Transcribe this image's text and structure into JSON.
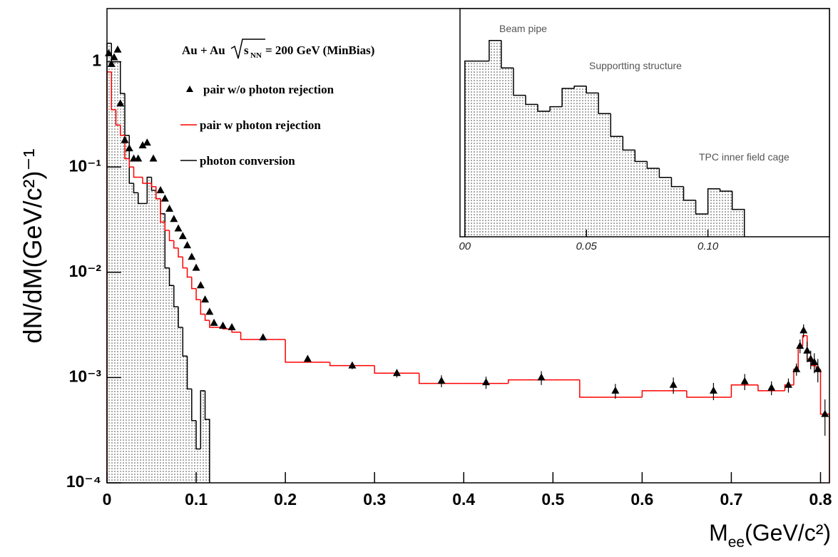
{
  "chart_data": [
    {
      "type": "step",
      "y_label": "dN/dM(GeV/c²)⁻¹",
      "x_label": [
        "M",
        "ee",
        "(GeV/c²)"
      ],
      "annotation": [
        "Au + Au ",
        "s",
        "NN",
        " = 200 GeV (MinBias)"
      ],
      "xlim": [
        0,
        0.81
      ],
      "ylim": [
        0.0001,
        3.2
      ],
      "log_y": true,
      "xticks": [
        0,
        0.1,
        0.2,
        0.3,
        0.4,
        0.5,
        0.6,
        0.7,
        0.8
      ],
      "yticks": [
        {
          "value": 0.0001,
          "label": "10⁻⁴"
        },
        {
          "value": 0.001,
          "label": "10⁻³"
        },
        {
          "value": 0.01,
          "label": "10⁻²"
        },
        {
          "value": 0.1,
          "label": "10⁻¹"
        },
        1
      ],
      "series": [
        {
          "name": "photon conversion",
          "type": "step",
          "color": "#000000",
          "fill": "dots",
          "bins": [
            0,
            0.005,
            0.01,
            0.015,
            0.02,
            0.025,
            0.03,
            0.035,
            0.04,
            0.045,
            0.05,
            0.055,
            0.06,
            0.065,
            0.07,
            0.075,
            0.08,
            0.085,
            0.09,
            0.095,
            0.1,
            0.105,
            0.11,
            0.115
          ],
          "values": [
            1.5,
            1,
            1,
            0.5,
            0.2,
            0.07,
            0.057,
            0.045,
            0.045,
            0.08,
            0.06,
            0.05,
            0.036,
            0.011,
            0.0075,
            0.0047,
            0.003,
            0.0016,
            0.00078,
            0.00039,
            0.00021,
            0.00075,
            0.0004
          ]
        },
        {
          "name": "pair w photon rejection",
          "type": "step",
          "color": "#ff0000",
          "bins": [
            0,
            0.005,
            0.01,
            0.015,
            0.02,
            0.025,
            0.03,
            0.035,
            0.04,
            0.045,
            0.05,
            0.055,
            0.06,
            0.065,
            0.07,
            0.075,
            0.08,
            0.085,
            0.09,
            0.095,
            0.1,
            0.105,
            0.11,
            0.115,
            0.12,
            0.13,
            0.14,
            0.15,
            0.2,
            0.25,
            0.3,
            0.35,
            0.4,
            0.45,
            0.5,
            0.53,
            0.6,
            0.65,
            0.7,
            0.73,
            0.76,
            0.77,
            0.775,
            0.78,
            0.785,
            0.79,
            0.795,
            0.8,
            0.81
          ],
          "values": [
            0.8,
            0.35,
            0.25,
            0.2,
            0.12,
            0.1,
            0.08,
            0.08,
            0.07,
            0.07,
            0.065,
            0.05,
            0.03,
            0.025,
            0.02,
            0.017,
            0.014,
            0.011,
            0.009,
            0.007,
            0.0055,
            0.004,
            0.0035,
            0.003,
            0.003,
            0.0029,
            0.0027,
            0.0023,
            0.0014,
            0.0013,
            0.0011,
            0.00088,
            0.00088,
            0.00095,
            0.00095,
            0.00065,
            0.00075,
            0.00065,
            0.00085,
            0.00075,
            0.00085,
            0.0012,
            0.002,
            0.0025,
            0.0015,
            0.0013,
            0.0012,
            0.00045
          ]
        },
        {
          "name": "pair w/o photon rejection",
          "type": "scatter",
          "color": "#000000",
          "marker": "triangle",
          "x": [
            0.002,
            0.005,
            0.008,
            0.012,
            0.015,
            0.02,
            0.025,
            0.03,
            0.035,
            0.04,
            0.045,
            0.052,
            0.06,
            0.065,
            0.07,
            0.075,
            0.08,
            0.085,
            0.09,
            0.095,
            0.1,
            0.105,
            0.11,
            0.115,
            0.12,
            0.13,
            0.14,
            0.175,
            0.225,
            0.275,
            0.325,
            0.375,
            0.425,
            0.487,
            0.57,
            0.635,
            0.68,
            0.715,
            0.745,
            0.764,
            0.773,
            0.777,
            0.781,
            0.785,
            0.789,
            0.793,
            0.797,
            0.805
          ],
          "values": [
            1.2,
            0.95,
            1.1,
            1.3,
            0.4,
            0.18,
            0.15,
            0.12,
            0.12,
            0.16,
            0.17,
            0.12,
            0.06,
            0.05,
            0.04,
            0.032,
            0.026,
            0.022,
            0.018,
            0.014,
            0.011,
            0.0075,
            0.0055,
            0.0042,
            0.0033,
            0.0031,
            0.003,
            0.0024,
            0.0015,
            0.0013,
            0.0011,
            0.00093,
            0.0009,
            0.001,
            0.00075,
            0.00085,
            0.00075,
            0.00092,
            0.0008,
            0.00085,
            0.0012,
            0.002,
            0.0028,
            0.0018,
            0.0015,
            0.0014,
            0.0012,
            0.00045
          ],
          "errors": [
            0,
            0,
            0,
            0,
            0,
            0,
            0,
            0,
            0,
            0,
            0,
            0,
            0,
            0,
            0,
            0,
            0,
            0,
            0,
            0,
            0,
            0,
            0,
            0,
            0,
            0,
            0,
            0.0001,
            0.0001,
            0.0001,
            0.0001,
            0.00012,
            0.00012,
            0.00015,
            0.00012,
            0.00015,
            0.00014,
            0.00016,
            0.00012,
            0.00013,
            0.00016,
            0.0003,
            0.0004,
            0.0004,
            0.0003,
            0.0003,
            0.0003,
            0.00017
          ]
        }
      ]
    },
    {
      "type": "step",
      "xlim": [
        -0.002,
        0.15
      ],
      "ylim": [
        0,
        100
      ],
      "xticks": [
        {
          "value": 0,
          "label": "00"
        },
        0.05,
        {
          "value": 0.1,
          "label": "0.10"
        }
      ],
      "annotations": [
        "Beam pipe",
        "Supportting structure",
        "TPC inner field cage"
      ],
      "series": [
        {
          "type": "step",
          "color": "#000000",
          "fill": "dots",
          "bins": [
            0,
            0.005,
            0.01,
            0.015,
            0.02,
            0.025,
            0.03,
            0.035,
            0.04,
            0.045,
            0.05,
            0.055,
            0.06,
            0.065,
            0.07,
            0.075,
            0.08,
            0.085,
            0.09,
            0.095,
            0.1,
            0.105,
            0.11,
            0.115
          ],
          "values": [
            77,
            77,
            86,
            74,
            62,
            58,
            55,
            57,
            65,
            66,
            63,
            54,
            44,
            38,
            33,
            30,
            26,
            22,
            16,
            10,
            21,
            20,
            12
          ]
        }
      ]
    }
  ]
}
